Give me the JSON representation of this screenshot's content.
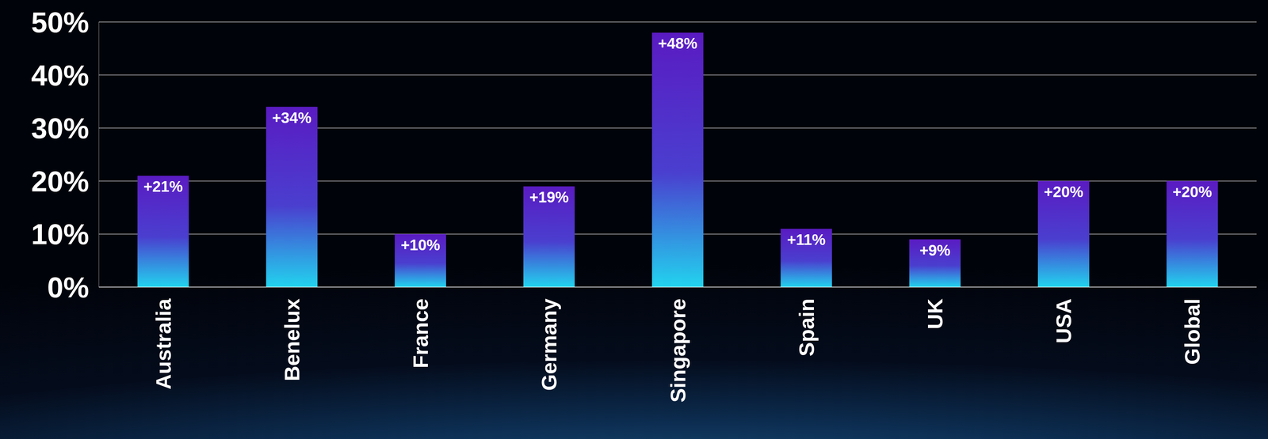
{
  "chart_data": {
    "type": "bar",
    "categories": [
      "Australia",
      "Benelux",
      "France",
      "Germany",
      "Singapore",
      "Spain",
      "UK",
      "USA",
      "Global"
    ],
    "values": [
      21,
      34,
      10,
      19,
      48,
      11,
      9,
      20,
      20
    ],
    "value_labels": [
      "+21%",
      "+34%",
      "+10%",
      "+19%",
      "+48%",
      "+11%",
      "+9%",
      "+20%",
      "+20%"
    ],
    "color": "#5a1bc2",
    "ylim": [
      0,
      50
    ],
    "yticks": [
      {
        "value": 0,
        "label": "0%"
      },
      {
        "value": 10,
        "label": "10%"
      },
      {
        "value": 20,
        "label": "20%"
      },
      {
        "value": 30,
        "label": "30%"
      },
      {
        "value": 40,
        "label": "40%"
      },
      {
        "value": 50,
        "label": "50%"
      }
    ],
    "grid": true,
    "data_labels": true
  }
}
